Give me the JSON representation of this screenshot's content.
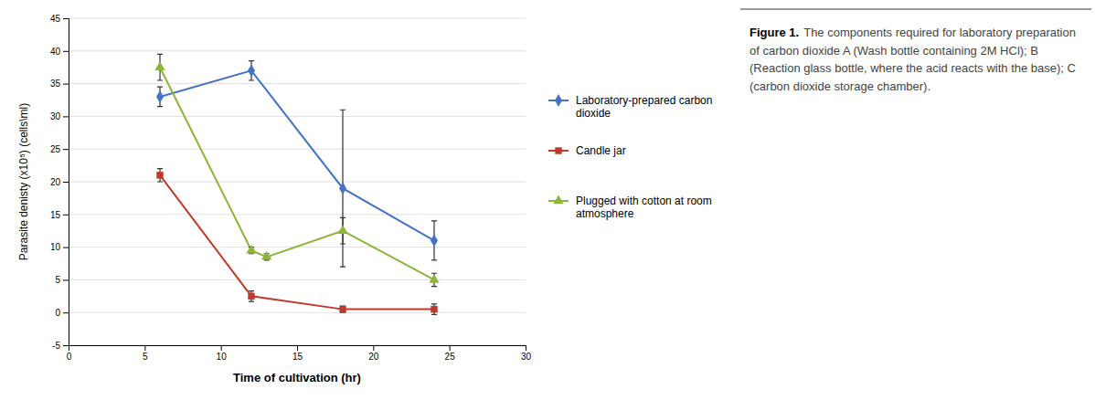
{
  "chart_data": {
    "type": "line",
    "xlabel": "Time  of cultivation (hr)",
    "ylabel": "Parasite denisty (x10⁵) (cells\\ml)",
    "xlim": [
      0,
      30
    ],
    "ylim": [
      -5,
      45
    ],
    "xticks": [
      0,
      5,
      10,
      15,
      20,
      25,
      30
    ],
    "yticks": [
      -5,
      0,
      5,
      10,
      15,
      20,
      25,
      30,
      35,
      40,
      45
    ],
    "grid": true,
    "legend": "right",
    "series": [
      {
        "name": "Laboratory-prepared carbon dioxide",
        "color": "#4472C4",
        "marker": "diamond",
        "x": [
          6,
          12,
          18,
          24
        ],
        "values": [
          33,
          37,
          19,
          11
        ],
        "errors": [
          1.5,
          1.5,
          12,
          3
        ]
      },
      {
        "name": "Candle jar",
        "color": "#C0392B",
        "marker": "square",
        "x": [
          6,
          12,
          18,
          24
        ],
        "values": [
          21,
          2.5,
          0.5,
          0.5
        ],
        "errors": [
          1.0,
          0.8,
          0.5,
          0.8
        ]
      },
      {
        "name": "Plugged with cotton at room atmosphere",
        "color": "#8DB53C",
        "marker": "triangle",
        "x": [
          6,
          12,
          13,
          18,
          24
        ],
        "values": [
          37.5,
          9.5,
          8.5,
          12.5,
          5
        ],
        "errors": [
          2.0,
          0.5,
          0.5,
          2.0,
          1.0
        ]
      }
    ],
    "annotations": [
      "Figure 1.",
      "The components required for laboratory preparation of carbon dioxide A (Wash bottle containing 2M HCl); B (Reaction glass bottle, where the acid reacts with the base); C (carbon dioxide storage chamber)."
    ]
  }
}
